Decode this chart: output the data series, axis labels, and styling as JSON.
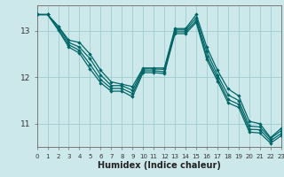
{
  "xlabel": "Humidex (Indice chaleur)",
  "background_color": "#cde8ea",
  "grid_color": "#9ecdd0",
  "line_color": "#006666",
  "xlim": [
    0,
    23
  ],
  "ylim": [
    10.5,
    13.55
  ],
  "yticks": [
    11,
    12,
    13
  ],
  "xtick_labels": [
    "0",
    "1",
    "2",
    "3",
    "4",
    "5",
    "6",
    "7",
    "8",
    "9",
    "10",
    "11",
    "12",
    "13",
    "14",
    "15",
    "16",
    "17",
    "18",
    "19",
    "20",
    "21",
    "22",
    "23"
  ],
  "series": [
    [
      13.35,
      13.35,
      13.1,
      12.8,
      12.75,
      12.5,
      12.15,
      11.9,
      11.85,
      11.8,
      12.2,
      12.2,
      12.2,
      13.05,
      13.05,
      13.35,
      12.65,
      12.15,
      11.75,
      11.6,
      11.05,
      11.0,
      10.7,
      10.9
    ],
    [
      13.35,
      13.35,
      13.1,
      12.75,
      12.65,
      12.4,
      12.05,
      11.82,
      11.82,
      11.72,
      12.18,
      12.18,
      12.17,
      13.02,
      13.02,
      13.28,
      12.55,
      12.05,
      11.62,
      11.5,
      10.95,
      10.93,
      10.68,
      10.85
    ],
    [
      13.35,
      13.35,
      13.05,
      12.7,
      12.58,
      12.28,
      11.95,
      11.76,
      11.76,
      11.65,
      12.14,
      12.14,
      12.12,
      12.98,
      12.98,
      13.22,
      12.45,
      11.98,
      11.52,
      11.42,
      10.88,
      10.87,
      10.63,
      10.79
    ],
    [
      13.35,
      13.35,
      13.02,
      12.65,
      12.52,
      12.18,
      11.88,
      11.7,
      11.7,
      11.58,
      12.1,
      12.1,
      12.08,
      12.94,
      12.94,
      13.18,
      12.38,
      11.92,
      11.45,
      11.35,
      10.82,
      10.8,
      10.58,
      10.74
    ]
  ]
}
